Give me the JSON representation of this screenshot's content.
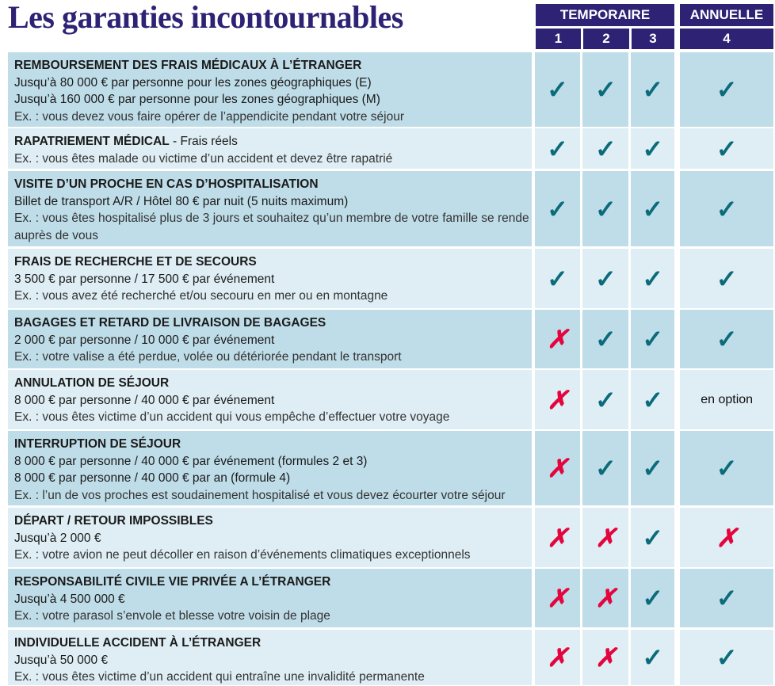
{
  "title": "Les garanties incontournables",
  "header": {
    "group_temporary": "TEMPORAIRE",
    "group_annual": "ANNUELLE",
    "columns": [
      "1",
      "2",
      "3",
      "4"
    ]
  },
  "symbols": {
    "check": "✓",
    "cross": "✗"
  },
  "colors": {
    "title": "#2d2274",
    "check": "#0b6b7a",
    "cross": "#e4053f",
    "row_dark": "#bfdde8",
    "row_light": "#deeef4"
  },
  "rows": [
    {
      "heading": "REMBOURSEMENT DES FRAIS MÉDICAUX À L’ÉTRANGER",
      "heading_suffix": "",
      "lines": [
        "Jusqu’à 80 000 € par personne pour les zones géographiques (E)",
        "Jusqu’à 160 000 € par personne pour les zones géographiques (M)"
      ],
      "example": "Ex. : vous devez vous faire opérer de l’appendicite pendant votre séjour",
      "values": [
        "check",
        "check",
        "check",
        "check"
      ]
    },
    {
      "heading": "RAPATRIEMENT MÉDICAL",
      "heading_suffix": " - Frais réels",
      "lines": [],
      "example": "Ex. : vous êtes malade ou victime d’un accident et devez être rapatrié",
      "values": [
        "check",
        "check",
        "check",
        "check"
      ]
    },
    {
      "heading": "VISITE D’UN PROCHE EN CAS D’HOSPITALISATION",
      "heading_suffix": "",
      "lines": [
        "Billet de transport A/R / Hôtel 80 € par nuit (5 nuits maximum)"
      ],
      "example": "Ex. : vous êtes hospitalisé plus de 3 jours et souhaitez qu’un membre de votre famille se rende auprès de vous",
      "values": [
        "check",
        "check",
        "check",
        "check"
      ]
    },
    {
      "heading": "FRAIS DE RECHERCHE ET DE SECOURS",
      "heading_suffix": "",
      "lines": [
        "3 500 € par personne / 17 500 € par événement"
      ],
      "example": "Ex. : vous avez été recherché et/ou secouru en mer ou en montagne",
      "values": [
        "check",
        "check",
        "check",
        "check"
      ]
    },
    {
      "heading": "BAGAGES ET RETARD DE LIVRAISON DE BAGAGES",
      "heading_suffix": "",
      "lines": [
        "2 000 € par personne / 10 000 € par événement"
      ],
      "example": "Ex. : votre valise a été perdue, volée ou détériorée pendant le transport",
      "values": [
        "cross",
        "check",
        "check",
        "check"
      ]
    },
    {
      "heading": "ANNULATION DE SÉJOUR",
      "heading_suffix": "",
      "lines": [
        "8 000 € par personne / 40 000 € par événement"
      ],
      "example": "Ex. : vous êtes victime d’un accident qui vous empêche d’effectuer votre voyage",
      "values": [
        "cross",
        "check",
        "check",
        "en option"
      ]
    },
    {
      "heading": "INTERRUPTION DE SÉJOUR",
      "heading_suffix": "",
      "lines": [
        "8 000 € par personne / 40 000 € par événement (formules 2 et 3)",
        "8 000 € par personne / 40 000 € par an (formule 4)"
      ],
      "example": "Ex. : l’un de vos proches est soudainement hospitalisé et vous devez écourter votre séjour",
      "values": [
        "cross",
        "check",
        "check",
        "check"
      ]
    },
    {
      "heading": "DÉPART / RETOUR IMPOSSIBLES",
      "heading_suffix": "",
      "lines": [
        "Jusqu’à 2 000 €"
      ],
      "example": "Ex. : votre avion ne peut décoller en raison d’événements climatiques exceptionnels",
      "values": [
        "cross",
        "cross",
        "check",
        "cross"
      ]
    },
    {
      "heading": "RESPONSABILITÉ CIVILE VIE PRIVÉE A L’ÉTRANGER",
      "heading_suffix": "",
      "lines": [
        "Jusqu’à 4 500 000 €"
      ],
      "example": "Ex. : votre parasol s’envole et blesse votre voisin de plage",
      "values": [
        "cross",
        "cross",
        "check",
        "check"
      ]
    },
    {
      "heading": "INDIVIDUELLE ACCIDENT À L’ÉTRANGER",
      "heading_suffix": "",
      "lines": [
        "Jusqu’à 50 000 €"
      ],
      "example": "Ex. : vous êtes victime d’un accident qui entraîne une invalidité permanente",
      "values": [
        "cross",
        "cross",
        "check",
        "check"
      ]
    }
  ]
}
